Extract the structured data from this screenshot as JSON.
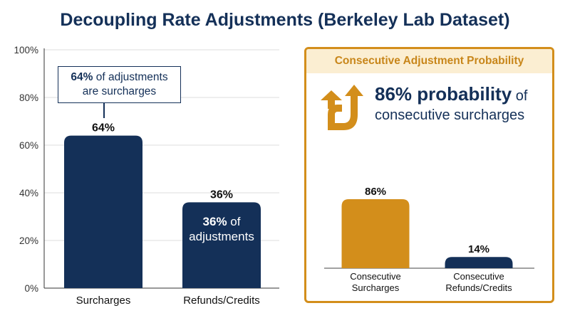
{
  "page_title": "Decoupling Rate Adjustments (Berkeley Lab Dataset)",
  "colors": {
    "navy": "#143058",
    "orange": "#d38e1b",
    "header_bg": "#fbeed2",
    "header_text": "#c8861a"
  },
  "left_callout": {
    "strong": "64%",
    "rest": " of adjustments",
    "line2": "are surcharges"
  },
  "left_inbar": {
    "strong": "36%",
    "rest": " of",
    "line2": "adjustments"
  },
  "right_panel": {
    "header": "Consecutive Adjustment Probability",
    "icon": "up-arrows-icon",
    "strong": "86% probability",
    "rest": " of",
    "line2": "consecutive surcharges"
  },
  "chart_data": [
    {
      "type": "bar",
      "categories": [
        "Surcharges",
        "Refunds/Credits"
      ],
      "values": [
        64,
        36
      ],
      "value_labels": [
        "64%",
        "36%"
      ],
      "ylim": [
        0,
        100
      ],
      "yticks": [
        0,
        20,
        40,
        60,
        80,
        100
      ],
      "ytick_labels": [
        "0%",
        "20%",
        "40%",
        "60%",
        "80%",
        "100%"
      ],
      "grid": true,
      "colors": [
        "#143058",
        "#143058"
      ]
    },
    {
      "type": "bar",
      "categories": [
        "Consecutive\nSurcharges",
        "Consecutive\nRefunds/Credits"
      ],
      "values": [
        86,
        14
      ],
      "value_labels": [
        "86%",
        "14%"
      ],
      "ylim": [
        0,
        100
      ],
      "grid": false,
      "colors": [
        "#d38e1b",
        "#143058"
      ]
    }
  ]
}
